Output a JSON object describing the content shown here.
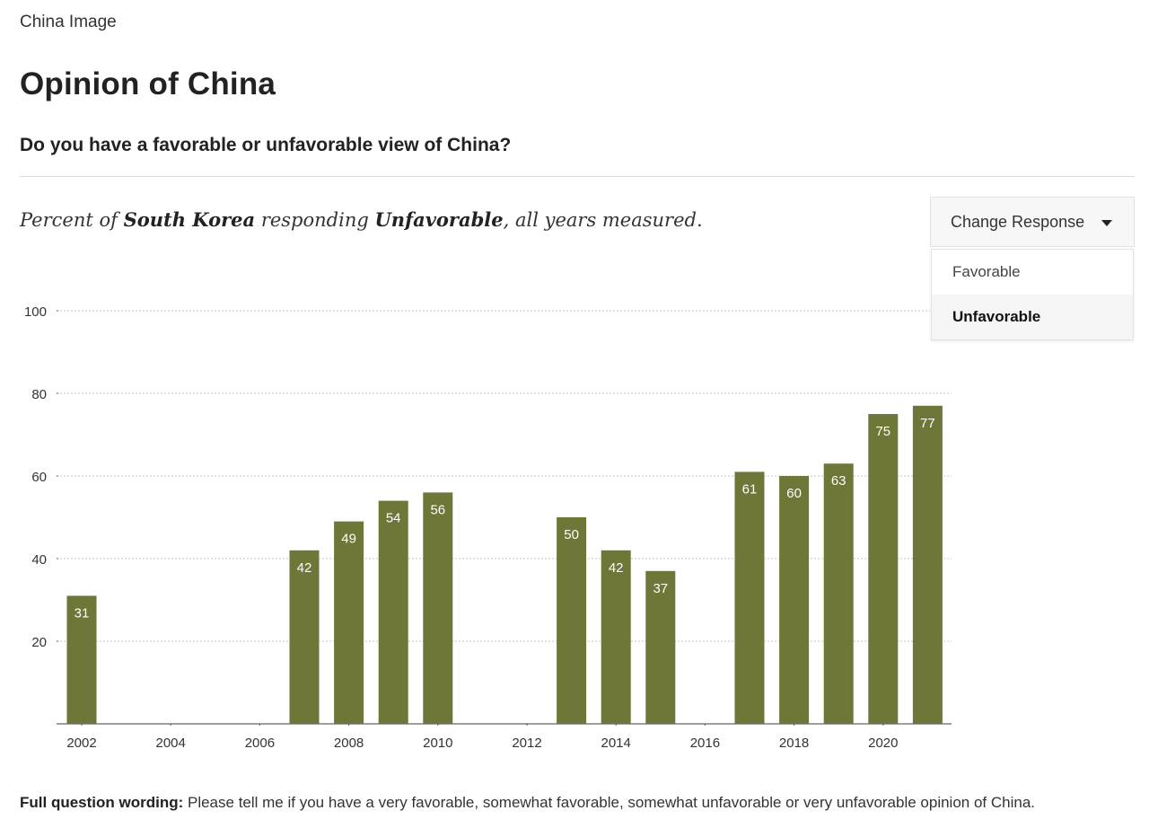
{
  "header": {
    "kicker": "China Image",
    "title": "Opinion of China",
    "question": "Do you have a favorable or unfavorable view of China?"
  },
  "subtitle": {
    "prefix": "Percent of ",
    "country": "South Korea",
    "middle": " responding ",
    "response": "Unfavorable",
    "suffix": ", all years measured."
  },
  "dropdown": {
    "button_label": "Change Response",
    "options": [
      "Favorable",
      "Unfavorable"
    ],
    "selected": "Unfavorable"
  },
  "footnote": {
    "label": "Full question wording:",
    "text": " Please tell me if you have a very favorable, somewhat favorable, somewhat unfavorable or very unfavorable opinion of China."
  },
  "chart_data": {
    "type": "bar",
    "title": "Opinion of China",
    "xlabel": "",
    "ylabel": "",
    "categories": [
      "2002",
      "2007",
      "2008",
      "2009",
      "2010",
      "2013",
      "2014",
      "2015",
      "2017",
      "2018",
      "2019",
      "2020",
      "2021"
    ],
    "values": [
      31,
      42,
      49,
      54,
      56,
      50,
      42,
      37,
      61,
      60,
      63,
      75,
      77
    ],
    "xlim": [
      2002,
      2021
    ],
    "ylim": [
      0,
      100
    ],
    "yticks": [
      20,
      40,
      60,
      80,
      100
    ],
    "xticks": [
      "2002",
      "2004",
      "2006",
      "2008",
      "2010",
      "2012",
      "2014",
      "2016",
      "2018",
      "2020"
    ],
    "grid": true,
    "bar_color": "#6e7638",
    "label_color": "#ffffff"
  }
}
